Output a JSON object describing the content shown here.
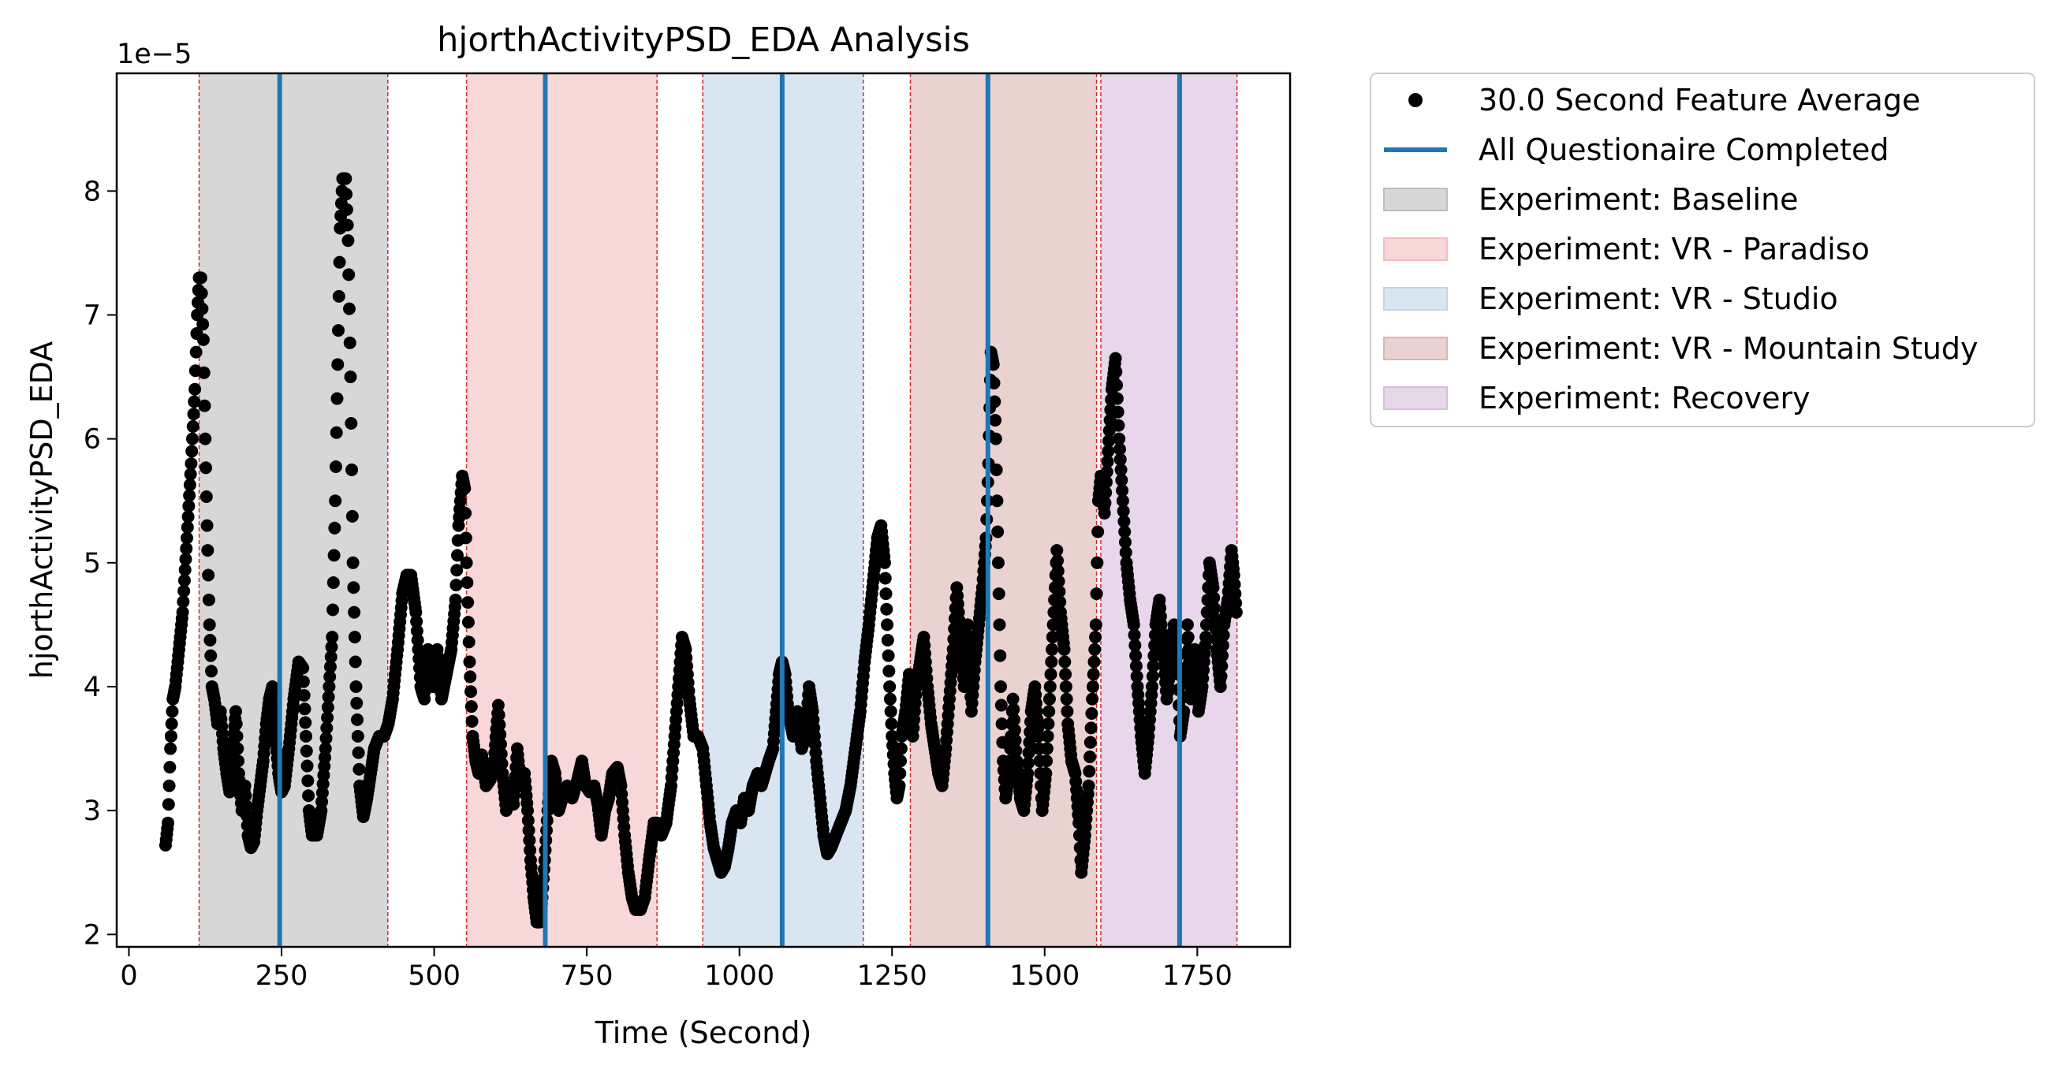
{
  "chart_data": {
    "type": "scatter",
    "title": "hjorthActivityPSD_EDA Analysis",
    "xlabel": "Time (Second)",
    "ylabel": "hjorthActivityPSD_EDA",
    "y_offset_label": "1e−5",
    "y_scale_factor": 1e-05,
    "xlim": [
      -20,
      1902
    ],
    "ylim": [
      1.9,
      8.95
    ],
    "x_ticks": [
      0,
      250,
      500,
      750,
      1000,
      1250,
      1500,
      1750
    ],
    "x_tick_labels": [
      "0",
      "250",
      "500",
      "750",
      "1000",
      "1250",
      "1500",
      "1750"
    ],
    "y_ticks": [
      2,
      3,
      4,
      5,
      6,
      7,
      8
    ],
    "y_tick_labels": [
      "2",
      "3",
      "4",
      "5",
      "6",
      "7",
      "8"
    ],
    "grid": false,
    "legend_position": "outside-right-top",
    "colors": {
      "points": "#000000",
      "questionnaire_line": "#1f77b4",
      "boundary_line": "#d62728"
    },
    "series": [
      {
        "name": "30.0 Second Feature Average",
        "kind": "points",
        "curve": [
          [
            60,
            2.72
          ],
          [
            64,
            2.9
          ],
          [
            68,
            3.5
          ],
          [
            72,
            3.9
          ],
          [
            76,
            4.0
          ],
          [
            82,
            4.3
          ],
          [
            88,
            4.6
          ],
          [
            95,
            5.2
          ],
          [
            102,
            5.8
          ],
          [
            108,
            6.4
          ],
          [
            112,
            7.0
          ],
          [
            115,
            7.3
          ],
          [
            118,
            7.3
          ],
          [
            122,
            6.8
          ],
          [
            125,
            6.0
          ],
          [
            128,
            5.3
          ],
          [
            132,
            4.5
          ],
          [
            136,
            4.0
          ],
          [
            140,
            3.9
          ],
          [
            145,
            3.7
          ],
          [
            150,
            3.8
          ],
          [
            155,
            3.5
          ],
          [
            160,
            3.3
          ],
          [
            165,
            3.15
          ],
          [
            170,
            3.5
          ],
          [
            175,
            3.8
          ],
          [
            180,
            3.3
          ],
          [
            185,
            3.0
          ],
          [
            190,
            3.2
          ],
          [
            195,
            2.8
          ],
          [
            200,
            2.7
          ],
          [
            205,
            2.75
          ],
          [
            210,
            3.0
          ],
          [
            215,
            3.2
          ],
          [
            220,
            3.4
          ],
          [
            225,
            3.7
          ],
          [
            230,
            3.9
          ],
          [
            235,
            4.0
          ],
          [
            240,
            3.6
          ],
          [
            245,
            3.3
          ],
          [
            250,
            3.15
          ],
          [
            255,
            3.2
          ],
          [
            262,
            3.5
          ],
          [
            270,
            3.9
          ],
          [
            278,
            4.2
          ],
          [
            285,
            4.15
          ],
          [
            290,
            3.6
          ],
          [
            295,
            3.0
          ],
          [
            300,
            2.8
          ],
          [
            308,
            2.8
          ],
          [
            315,
            3.0
          ],
          [
            322,
            3.5
          ],
          [
            328,
            4.0
          ],
          [
            333,
            4.4
          ],
          [
            338,
            5.5
          ],
          [
            342,
            6.6
          ],
          [
            346,
            7.7
          ],
          [
            350,
            8.1
          ],
          [
            355,
            8.1
          ],
          [
            359,
            7.6
          ],
          [
            363,
            6.5
          ],
          [
            367,
            5.0
          ],
          [
            372,
            4.0
          ],
          [
            378,
            3.2
          ],
          [
            384,
            2.95
          ],
          [
            390,
            3.1
          ],
          [
            396,
            3.3
          ],
          [
            402,
            3.5
          ],
          [
            410,
            3.6
          ],
          [
            418,
            3.6
          ],
          [
            425,
            3.7
          ],
          [
            432,
            3.9
          ],
          [
            440,
            4.3
          ],
          [
            448,
            4.75
          ],
          [
            455,
            4.9
          ],
          [
            462,
            4.9
          ],
          [
            470,
            4.6
          ],
          [
            478,
            4.0
          ],
          [
            484,
            3.9
          ],
          [
            490,
            4.3
          ],
          [
            498,
            4.0
          ],
          [
            505,
            4.3
          ],
          [
            512,
            3.9
          ],
          [
            520,
            4.1
          ],
          [
            528,
            4.3
          ],
          [
            535,
            4.7
          ],
          [
            540,
            5.3
          ],
          [
            546,
            5.7
          ],
          [
            550,
            5.6
          ],
          [
            553,
            5.0
          ],
          [
            558,
            4.2
          ],
          [
            563,
            3.6
          ],
          [
            568,
            3.4
          ],
          [
            573,
            3.3
          ],
          [
            578,
            3.45
          ],
          [
            585,
            3.2
          ],
          [
            592,
            3.25
          ],
          [
            598,
            3.4
          ],
          [
            605,
            3.85
          ],
          [
            612,
            3.3
          ],
          [
            618,
            3.0
          ],
          [
            625,
            3.2
          ],
          [
            630,
            3.05
          ],
          [
            636,
            3.5
          ],
          [
            642,
            3.2
          ],
          [
            648,
            3.3
          ],
          [
            653,
            3.0
          ],
          [
            658,
            2.6
          ],
          [
            663,
            2.3
          ],
          [
            668,
            2.1
          ],
          [
            673,
            2.1
          ],
          [
            677,
            2.3
          ],
          [
            681,
            2.6
          ],
          [
            686,
            3.0
          ],
          [
            692,
            3.4
          ],
          [
            698,
            3.3
          ],
          [
            704,
            3.0
          ],
          [
            710,
            3.1
          ],
          [
            718,
            3.2
          ],
          [
            726,
            3.1
          ],
          [
            735,
            3.25
          ],
          [
            742,
            3.4
          ],
          [
            748,
            3.2
          ],
          [
            755,
            3.15
          ],
          [
            762,
            3.2
          ],
          [
            768,
            3.05
          ],
          [
            774,
            2.8
          ],
          [
            780,
            3.0
          ],
          [
            786,
            3.1
          ],
          [
            792,
            3.3
          ],
          [
            800,
            3.35
          ],
          [
            806,
            3.2
          ],
          [
            812,
            2.8
          ],
          [
            818,
            2.5
          ],
          [
            824,
            2.3
          ],
          [
            830,
            2.2
          ],
          [
            838,
            2.2
          ],
          [
            845,
            2.3
          ],
          [
            852,
            2.6
          ],
          [
            860,
            2.9
          ],
          [
            866,
            2.9
          ],
          [
            872,
            2.8
          ],
          [
            880,
            2.9
          ],
          [
            888,
            3.2
          ],
          [
            894,
            3.6
          ],
          [
            900,
            4.0
          ],
          [
            906,
            4.4
          ],
          [
            912,
            4.3
          ],
          [
            918,
            3.9
          ],
          [
            925,
            3.6
          ],
          [
            932,
            3.6
          ],
          [
            940,
            3.5
          ],
          [
            946,
            3.2
          ],
          [
            952,
            2.9
          ],
          [
            958,
            2.7
          ],
          [
            964,
            2.6
          ],
          [
            970,
            2.5
          ],
          [
            976,
            2.55
          ],
          [
            982,
            2.7
          ],
          [
            988,
            2.9
          ],
          [
            995,
            3.0
          ],
          [
            1002,
            2.9
          ],
          [
            1008,
            3.1
          ],
          [
            1015,
            3.0
          ],
          [
            1022,
            3.2
          ],
          [
            1030,
            3.3
          ],
          [
            1036,
            3.2
          ],
          [
            1042,
            3.3
          ],
          [
            1048,
            3.4
          ],
          [
            1055,
            3.5
          ],
          [
            1060,
            3.8
          ],
          [
            1065,
            4.1
          ],
          [
            1070,
            4.2
          ],
          [
            1075,
            4.1
          ],
          [
            1080,
            3.8
          ],
          [
            1088,
            3.6
          ],
          [
            1095,
            3.8
          ],
          [
            1102,
            3.5
          ],
          [
            1108,
            3.6
          ],
          [
            1114,
            4.0
          ],
          [
            1120,
            3.8
          ],
          [
            1126,
            3.4
          ],
          [
            1132,
            3.1
          ],
          [
            1138,
            2.8
          ],
          [
            1144,
            2.65
          ],
          [
            1150,
            2.7
          ],
          [
            1158,
            2.8
          ],
          [
            1166,
            2.9
          ],
          [
            1174,
            3.0
          ],
          [
            1182,
            3.2
          ],
          [
            1190,
            3.5
          ],
          [
            1198,
            3.8
          ],
          [
            1205,
            4.2
          ],
          [
            1212,
            4.5
          ],
          [
            1220,
            4.9
          ],
          [
            1226,
            5.2
          ],
          [
            1232,
            5.3
          ],
          [
            1238,
            5.0
          ],
          [
            1242,
            4.5
          ],
          [
            1246,
            4.0
          ],
          [
            1250,
            3.6
          ],
          [
            1254,
            3.3
          ],
          [
            1258,
            3.1
          ],
          [
            1262,
            3.2
          ],
          [
            1266,
            3.6
          ],
          [
            1272,
            3.8
          ],
          [
            1278,
            4.1
          ],
          [
            1284,
            3.6
          ],
          [
            1290,
            4.0
          ],
          [
            1296,
            4.2
          ],
          [
            1302,
            4.4
          ],
          [
            1308,
            4.0
          ],
          [
            1314,
            3.7
          ],
          [
            1320,
            3.5
          ],
          [
            1326,
            3.3
          ],
          [
            1332,
            3.2
          ],
          [
            1338,
            3.5
          ],
          [
            1344,
            3.9
          ],
          [
            1350,
            4.3
          ],
          [
            1356,
            4.8
          ],
          [
            1362,
            4.4
          ],
          [
            1368,
            4.0
          ],
          [
            1374,
            4.5
          ],
          [
            1380,
            3.8
          ],
          [
            1386,
            4.2
          ],
          [
            1392,
            4.5
          ],
          [
            1398,
            4.8
          ],
          [
            1404,
            5.2
          ],
          [
            1408,
            5.8
          ],
          [
            1412,
            6.7
          ],
          [
            1416,
            6.6
          ],
          [
            1420,
            6.0
          ],
          [
            1424,
            5.0
          ],
          [
            1428,
            4.0
          ],
          [
            1432,
            3.4
          ],
          [
            1436,
            3.1
          ],
          [
            1442,
            3.3
          ],
          [
            1448,
            3.9
          ],
          [
            1454,
            3.4
          ],
          [
            1460,
            3.1
          ],
          [
            1466,
            3.0
          ],
          [
            1472,
            3.3
          ],
          [
            1478,
            3.8
          ],
          [
            1484,
            4.0
          ],
          [
            1490,
            3.6
          ],
          [
            1496,
            3.0
          ],
          [
            1502,
            3.3
          ],
          [
            1508,
            3.9
          ],
          [
            1514,
            4.5
          ],
          [
            1520,
            5.1
          ],
          [
            1526,
            4.6
          ],
          [
            1532,
            4.3
          ],
          [
            1538,
            3.7
          ],
          [
            1544,
            3.4
          ],
          [
            1550,
            3.3
          ],
          [
            1556,
            2.9
          ],
          [
            1560,
            2.5
          ],
          [
            1566,
            2.8
          ],
          [
            1572,
            3.2
          ],
          [
            1578,
            3.9
          ],
          [
            1584,
            4.5
          ],
          [
            1588,
            5.5
          ],
          [
            1592,
            5.7
          ],
          [
            1598,
            5.4
          ],
          [
            1604,
            5.9
          ],
          [
            1610,
            6.4
          ],
          [
            1616,
            6.65
          ],
          [
            1622,
            6.0
          ],
          [
            1628,
            5.5
          ],
          [
            1634,
            5.0
          ],
          [
            1640,
            4.7
          ],
          [
            1646,
            4.5
          ],
          [
            1652,
            4.0
          ],
          [
            1658,
            3.6
          ],
          [
            1664,
            3.3
          ],
          [
            1670,
            3.6
          ],
          [
            1676,
            4.0
          ],
          [
            1682,
            4.5
          ],
          [
            1688,
            4.7
          ],
          [
            1694,
            4.3
          ],
          [
            1700,
            3.9
          ],
          [
            1706,
            4.2
          ],
          [
            1712,
            4.5
          ],
          [
            1718,
            4.1
          ],
          [
            1722,
            3.6
          ],
          [
            1728,
            3.8
          ],
          [
            1734,
            4.5
          ],
          [
            1740,
            3.9
          ],
          [
            1746,
            4.3
          ],
          [
            1752,
            3.8
          ],
          [
            1758,
            4.0
          ],
          [
            1764,
            4.4
          ],
          [
            1770,
            5.0
          ],
          [
            1776,
            4.8
          ],
          [
            1782,
            4.3
          ],
          [
            1788,
            4.0
          ],
          [
            1794,
            4.5
          ],
          [
            1800,
            4.7
          ],
          [
            1806,
            5.1
          ],
          [
            1810,
            4.9
          ],
          [
            1814,
            4.6
          ]
        ]
      },
      {
        "name": "All Questionaire Completed",
        "kind": "vline",
        "x": [
          247,
          682,
          1070,
          1407,
          1721
        ]
      }
    ],
    "spans": [
      {
        "name": "Experiment: Baseline",
        "x0": 115,
        "x1": 424,
        "color": "#bdbdbd"
      },
      {
        "name": "Experiment: VR - Paradiso",
        "x0": 553,
        "x1": 865,
        "color": "#f4bcbf"
      },
      {
        "name": "Experiment: VR - Studio",
        "x0": 940,
        "x1": 1203,
        "color": "#c0d6ea"
      },
      {
        "name": "Experiment: VR - Mountain Study",
        "x0": 1280,
        "x1": 1585,
        "color": "#dcb4b2"
      },
      {
        "name": "Experiment: Recovery",
        "x0": 1592,
        "x1": 1815,
        "color": "#d9bbde"
      }
    ],
    "legend": [
      "30.0 Second Feature Average",
      "All Questionaire Completed",
      "Experiment: Baseline",
      "Experiment: VR - Paradiso",
      "Experiment: VR - Studio",
      "Experiment: VR - Mountain Study",
      "Experiment: Recovery"
    ]
  }
}
